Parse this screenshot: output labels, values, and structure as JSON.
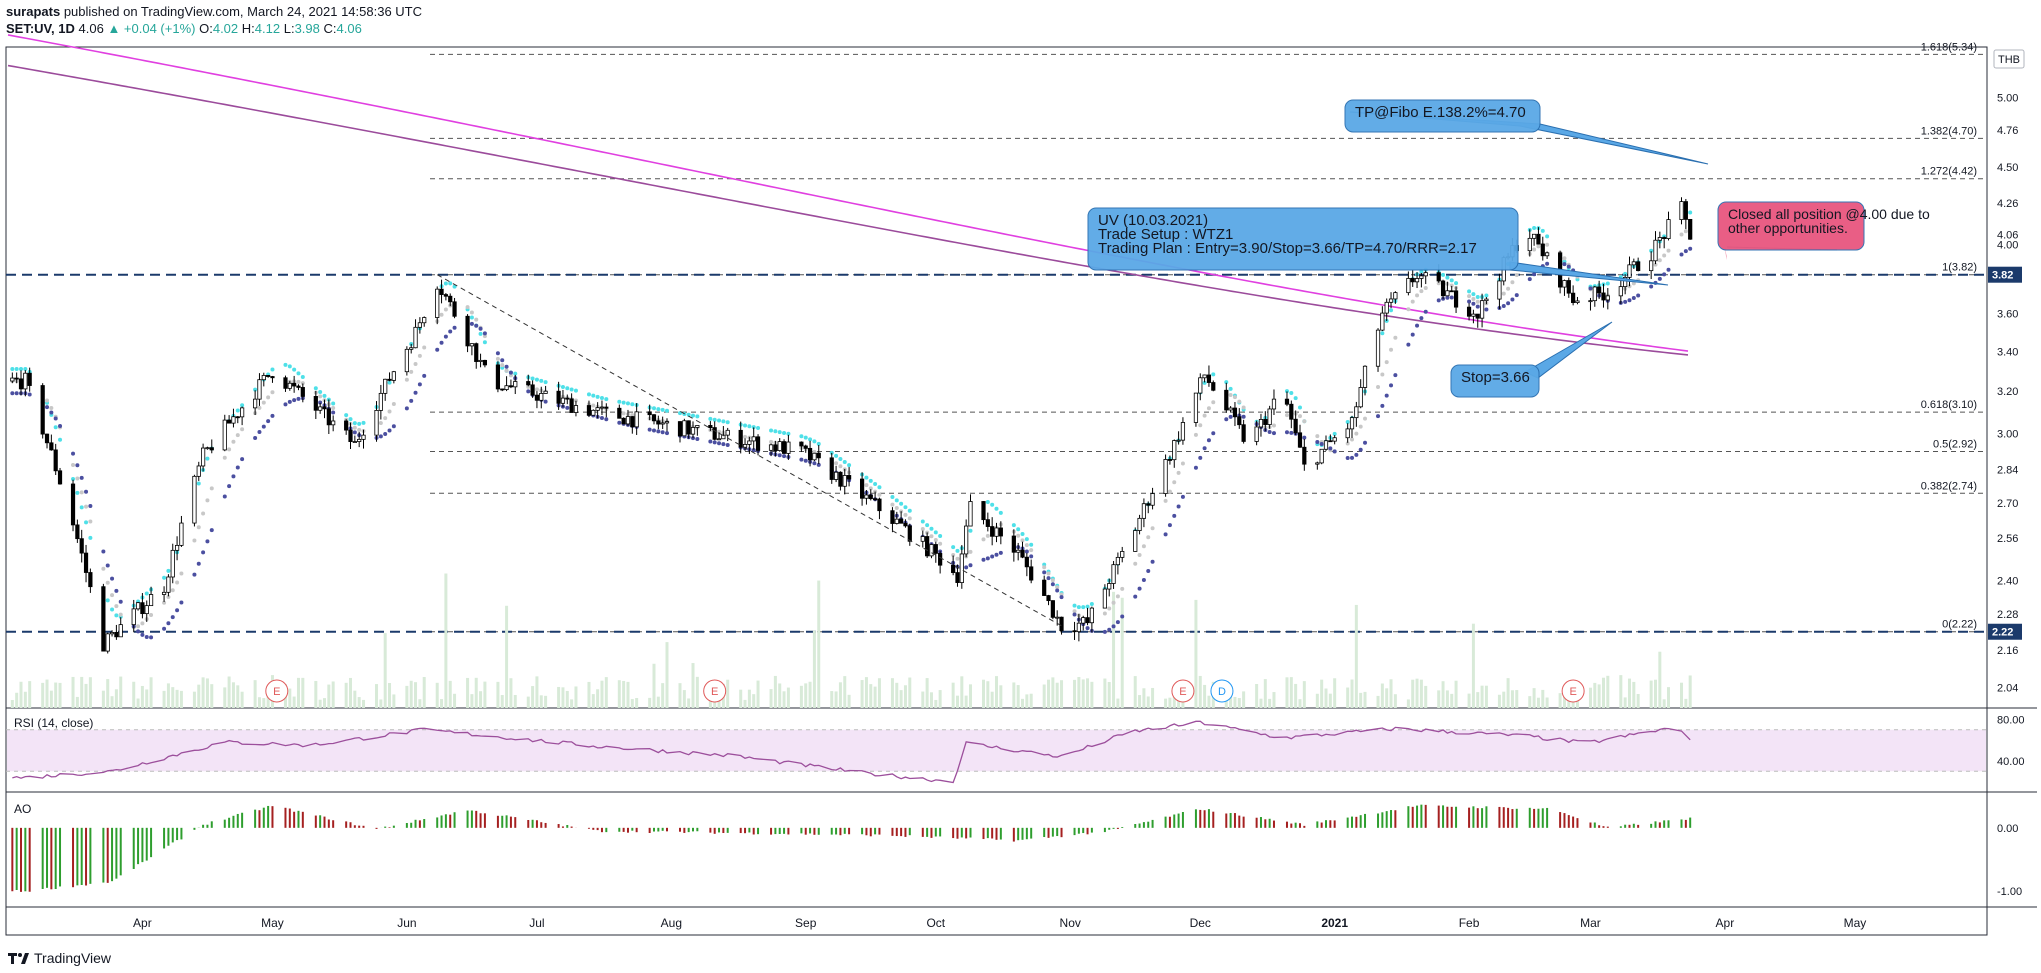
{
  "header": {
    "publisher": "surapats",
    "published_text": " published on TradingView.com, March 24, 2021 14:58:36 UTC",
    "symbol": "SET:UV, 1D",
    "last": "4.06",
    "change": "▲ +0.04 (+1%)",
    "open_label": "O:",
    "open": "4.02",
    "high_label": "H:",
    "high": "4.12",
    "low_label": "L:",
    "low": "3.98",
    "close_label": "C:",
    "close": "4.06"
  },
  "footer": {
    "brand": "TradingView"
  },
  "currency": "THB",
  "colors": {
    "up": "#ffffff",
    "down": "#000000",
    "outline": "#000000",
    "ema_fast": "#4ee0e8",
    "ema_mid": "#c8c8c8",
    "ema_slow": "#4b4fa0",
    "ma_magenta": "#e040e0",
    "ma_purple": "#9b4b9b",
    "rsi_line": "#9c4f9c",
    "rsi_band": "#f3e4f7",
    "ao_up": "#2e9e2e",
    "ao_down": "#a52020",
    "note_blue": "#5aa8e6",
    "note_pink": "#e8567f",
    "level_line": "#1b3a6b"
  },
  "chart_data": [
    {
      "type": "candlestick",
      "title": "SET:UV, 1D",
      "x_ticks": [
        "Apr",
        "May",
        "Jun",
        "Jul",
        "Aug",
        "Sep",
        "Oct",
        "Nov",
        "Dec",
        "2021",
        "Feb",
        "Mar",
        "Apr",
        "May"
      ],
      "y_ticks": [
        "5.00",
        "4.76",
        "4.50",
        "4.26",
        "4.00",
        "3.60",
        "3.40",
        "3.20",
        "3.00",
        "2.84",
        "2.70",
        "2.56",
        "2.40",
        "2.28",
        "2.16",
        "2.04"
      ],
      "y_range": [
        1.98,
        5.4
      ],
      "y_scale": "log",
      "price_labels": [
        {
          "value": 4.06,
          "text": "4.06",
          "style": "plain"
        },
        {
          "value": 3.82,
          "text": "3.82",
          "style": "box"
        },
        {
          "value": 2.22,
          "text": "2.22",
          "style": "box"
        }
      ],
      "horizontal_levels": [
        {
          "value": 3.82,
          "style": "thick-dashed"
        },
        {
          "value": 2.22,
          "style": "thick-dashed"
        }
      ],
      "fibonacci": [
        {
          "value": 5.34,
          "label": "1.618(5.34)"
        },
        {
          "value": 4.7,
          "label": "1.382(4.70)"
        },
        {
          "value": 4.42,
          "label": "1.272(4.42)"
        },
        {
          "value": 3.82,
          "label": "1(3.82)"
        },
        {
          "value": 3.1,
          "label": "0.618(3.10)"
        },
        {
          "value": 2.92,
          "label": "0.5(2.92)"
        },
        {
          "value": 2.74,
          "label": "0.382(2.74)"
        },
        {
          "value": 2.22,
          "label": "0(2.22)"
        }
      ],
      "annotations": {
        "tp": {
          "text": "TP@Fibo E.138.2%=4.70"
        },
        "plan": {
          "lines": [
            "UV (10.03.2021)",
            "Trade Setup : WTZ1",
            "Trading Plan : Entry=3.90/Stop=3.66/TP=4.70/RRR=2.17"
          ]
        },
        "stop": {
          "text": "Stop=3.66"
        },
        "closed": {
          "lines": [
            "Closed all position @4.00 due to",
            "other opportunities."
          ]
        }
      },
      "event_markers": [
        {
          "date": "2020-05-02",
          "text": "E",
          "color": "#e05a5a"
        },
        {
          "date": "2020-08-11",
          "text": "E",
          "color": "#e05a5a"
        },
        {
          "date": "2020-11-27",
          "text": "E",
          "color": "#e05a5a"
        },
        {
          "date": "2020-12-06",
          "text": "D",
          "color": "#2196f3"
        },
        {
          "date": "2021-02-25",
          "text": "E",
          "color": "#e05a5a"
        }
      ],
      "key_points": [
        {
          "date": "2020-03-05",
          "close": 3.25
        },
        {
          "date": "2020-03-16",
          "close": 2.62
        },
        {
          "date": "2020-03-23",
          "close": 2.18
        },
        {
          "date": "2020-04-06",
          "close": 2.38
        },
        {
          "date": "2020-04-15",
          "close": 2.9
        },
        {
          "date": "2020-05-01",
          "close": 3.3
        },
        {
          "date": "2020-05-20",
          "close": 2.95
        },
        {
          "date": "2020-06-03",
          "close": 3.5
        },
        {
          "date": "2020-06-08",
          "close": 3.78
        },
        {
          "date": "2020-06-20",
          "close": 3.25
        },
        {
          "date": "2020-07-15",
          "close": 3.1
        },
        {
          "date": "2020-08-10",
          "close": 3.0
        },
        {
          "date": "2020-08-31",
          "close": 2.92
        },
        {
          "date": "2020-09-20",
          "close": 2.65
        },
        {
          "date": "2020-10-06",
          "close": 2.42
        },
        {
          "date": "2020-10-09",
          "close": 2.68
        },
        {
          "date": "2020-10-20",
          "close": 2.5
        },
        {
          "date": "2020-10-30",
          "close": 2.24
        },
        {
          "date": "2020-11-05",
          "close": 2.25
        },
        {
          "date": "2020-11-15",
          "close": 2.56
        },
        {
          "date": "2020-11-25",
          "close": 2.95
        },
        {
          "date": "2020-12-02",
          "close": 3.28
        },
        {
          "date": "2020-12-12",
          "close": 2.95
        },
        {
          "date": "2020-12-20",
          "close": 3.2
        },
        {
          "date": "2020-12-25",
          "close": 2.85
        },
        {
          "date": "2021-01-05",
          "close": 3.05
        },
        {
          "date": "2021-01-12",
          "close": 3.6
        },
        {
          "date": "2021-01-20",
          "close": 3.82
        },
        {
          "date": "2021-02-03",
          "close": 3.6
        },
        {
          "date": "2021-02-14",
          "close": 4.1
        },
        {
          "date": "2021-02-25",
          "close": 3.68
        },
        {
          "date": "2021-03-05",
          "close": 3.72
        },
        {
          "date": "2021-03-15",
          "close": 3.95
        },
        {
          "date": "2021-03-22",
          "close": 4.22
        },
        {
          "date": "2021-03-24",
          "close": 4.06
        }
      ]
    },
    {
      "type": "line",
      "title": "RSI (14, close)",
      "y_ticks": [
        "80.00",
        "40.00"
      ],
      "y_range": [
        10,
        90
      ],
      "band": [
        30,
        70
      ],
      "key_points": [
        {
          "date": "2020-03-05",
          "value": 24
        },
        {
          "date": "2020-03-25",
          "value": 30
        },
        {
          "date": "2020-04-20",
          "value": 58
        },
        {
          "date": "2020-05-10",
          "value": 55
        },
        {
          "date": "2020-06-05",
          "value": 70
        },
        {
          "date": "2020-07-15",
          "value": 54
        },
        {
          "date": "2020-08-15",
          "value": 45
        },
        {
          "date": "2020-09-15",
          "value": 28
        },
        {
          "date": "2020-10-05",
          "value": 20
        },
        {
          "date": "2020-10-08",
          "value": 57
        },
        {
          "date": "2020-10-30",
          "value": 44
        },
        {
          "date": "2020-11-15",
          "value": 68
        },
        {
          "date": "2020-12-01",
          "value": 77
        },
        {
          "date": "2020-12-20",
          "value": 62
        },
        {
          "date": "2021-01-15",
          "value": 71
        },
        {
          "date": "2021-02-14",
          "value": 64
        },
        {
          "date": "2021-02-28",
          "value": 57
        },
        {
          "date": "2021-03-20",
          "value": 72
        },
        {
          "date": "2021-03-24",
          "value": 62
        }
      ]
    },
    {
      "type": "bar",
      "title": "AO",
      "y_ticks": [
        "0.00",
        "-1.00"
      ],
      "y_range": [
        -1.25,
        0.55
      ],
      "key_points": [
        {
          "date": "2020-03-05",
          "value": -1.0
        },
        {
          "date": "2020-03-25",
          "value": -0.85
        },
        {
          "date": "2020-04-15",
          "value": 0.05
        },
        {
          "date": "2020-05-01",
          "value": 0.35
        },
        {
          "date": "2020-05-25",
          "value": -0.02
        },
        {
          "date": "2020-06-15",
          "value": 0.28
        },
        {
          "date": "2020-07-15",
          "value": -0.05
        },
        {
          "date": "2020-08-15",
          "value": -0.08
        },
        {
          "date": "2020-09-20",
          "value": -0.12
        },
        {
          "date": "2020-10-20",
          "value": -0.2
        },
        {
          "date": "2020-11-10",
          "value": -0.05
        },
        {
          "date": "2020-12-01",
          "value": 0.3
        },
        {
          "date": "2020-12-25",
          "value": 0.05
        },
        {
          "date": "2021-01-20",
          "value": 0.35
        },
        {
          "date": "2021-02-20",
          "value": 0.3
        },
        {
          "date": "2021-03-05",
          "value": 0.0
        },
        {
          "date": "2021-03-24",
          "value": 0.15
        }
      ]
    }
  ]
}
